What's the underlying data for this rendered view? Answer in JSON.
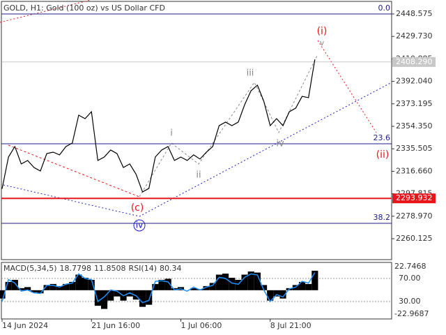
{
  "chart_data": [
    {
      "type": "line",
      "title": "GOLD, H1:  Gold (100 oz) vs US Dollar CFD",
      "categories": [
        "14 Jun 2024",
        null,
        null,
        null,
        null,
        null,
        null,
        null,
        null,
        null,
        null,
        null,
        null,
        null,
        "21 Jun 16:00",
        null,
        null,
        null,
        null,
        null,
        null,
        null,
        null,
        null,
        null,
        null,
        null,
        null,
        "1 Jul 06:00",
        null,
        null,
        null,
        null,
        null,
        null,
        null,
        null,
        null,
        null,
        null,
        null,
        null,
        "8 Jul 21:00",
        null,
        null,
        null,
        null,
        null,
        null,
        null
      ],
      "series": [
        {
          "name": "GOLD",
          "color": "#000000",
          "values": [
            2302.0,
            2328.6,
            2337.4,
            2322.8,
            2325.7,
            2319.8,
            2316.9,
            2331.5,
            2332.7,
            2330.4,
            2337.4,
            2340.3,
            2363.7,
            2360.8,
            2366.6,
            2325.7,
            2328.6,
            2334.5,
            2331.5,
            2319.8,
            2322.8,
            2314.0,
            2299.3,
            2302.3,
            2328.6,
            2334.5,
            2337.4,
            2325.7,
            2328.6,
            2325.7,
            2330.4,
            2326.9,
            2332.7,
            2337.4,
            2354.9,
            2357.9,
            2354.9,
            2357.9,
            2372.5,
            2384.2,
            2388.9,
            2375.4,
            2354.9,
            2360.8,
            2354.9,
            2366.6,
            2369.6,
            2379.5,
            2378.4,
            2410.5
          ]
        }
      ],
      "ylim": [
        2242.57,
        2459.11
      ],
      "yticks": [
        2260.125,
        {
          "value": 2278.97,
          "label": "2278.970"
        },
        2297.815,
        {
          "value": 2316.66,
          "label": "2316.660"
        },
        2335.505,
        {
          "value": 2354.35,
          "label": "2354.350"
        },
        2373.195,
        {
          "value": 2392.04,
          "label": "2392.040"
        },
        2410.885,
        {
          "value": 2429.73,
          "label": "2429.730"
        },
        2448.575
      ],
      "current_price": {
        "value": 2408.29,
        "label": "2408.290"
      },
      "level": {
        "value": 2293.932,
        "label": "2293.932",
        "color": "#e8161b"
      },
      "fib_levels": [
        {
          "value": 2448.6,
          "label": "0.0"
        },
        {
          "value": 2339.7,
          "label": "23.6"
        },
        {
          "value": 2273.0,
          "label": "38.2"
        }
      ],
      "fib_color": "#1c1c8a",
      "annotations": [
        "(i)",
        "v",
        "iii",
        "i",
        "ii",
        "iv",
        "(ii)",
        "(c)",
        "iv"
      ]
    },
    {
      "type": "bar",
      "series": [
        {
          "name": "MACD(5,34,5)",
          "color": "#000000",
          "signal_value": 11.8508,
          "values": [
            -8,
            8,
            10,
            2,
            3,
            -2,
            -3,
            5,
            6,
            4,
            6,
            8,
            15,
            12,
            10,
            -15,
            -18,
            -10,
            -6,
            -10,
            -6,
            -9,
            -16,
            -14,
            6,
            10,
            11,
            2,
            3,
            0,
            2,
            1,
            4,
            7,
            15,
            16,
            12,
            10,
            15,
            18,
            17,
            5,
            -10,
            -6,
            -8,
            2,
            5,
            8,
            6,
            18.7798
          ]
        },
        {
          "name": "RSI(14)",
          "color": "#1e90ff",
          "axis": "y2",
          "values": [
            30,
            68,
            62,
            48,
            50,
            45,
            44,
            58,
            58,
            55,
            60,
            62,
            78,
            70,
            68,
            30,
            38,
            50,
            48,
            40,
            45,
            40,
            28,
            32,
            65,
            66,
            64,
            50,
            52,
            48,
            55,
            50,
            55,
            58,
            72,
            70,
            62,
            60,
            72,
            78,
            76,
            50,
            30,
            42,
            38,
            52,
            55,
            65,
            62,
            80.34
          ]
        }
      ],
      "ylim": [
        -22.9687,
        22.7468
      ],
      "yticks": [
        -22.9687,
        22.7468
      ],
      "y2lim": [
        8.2,
        90.6
      ],
      "y2ticks": [
        {
          "value": 70,
          "label": "70.00"
        },
        {
          "value": 30,
          "label": "30.00"
        }
      ]
    }
  ]
}
